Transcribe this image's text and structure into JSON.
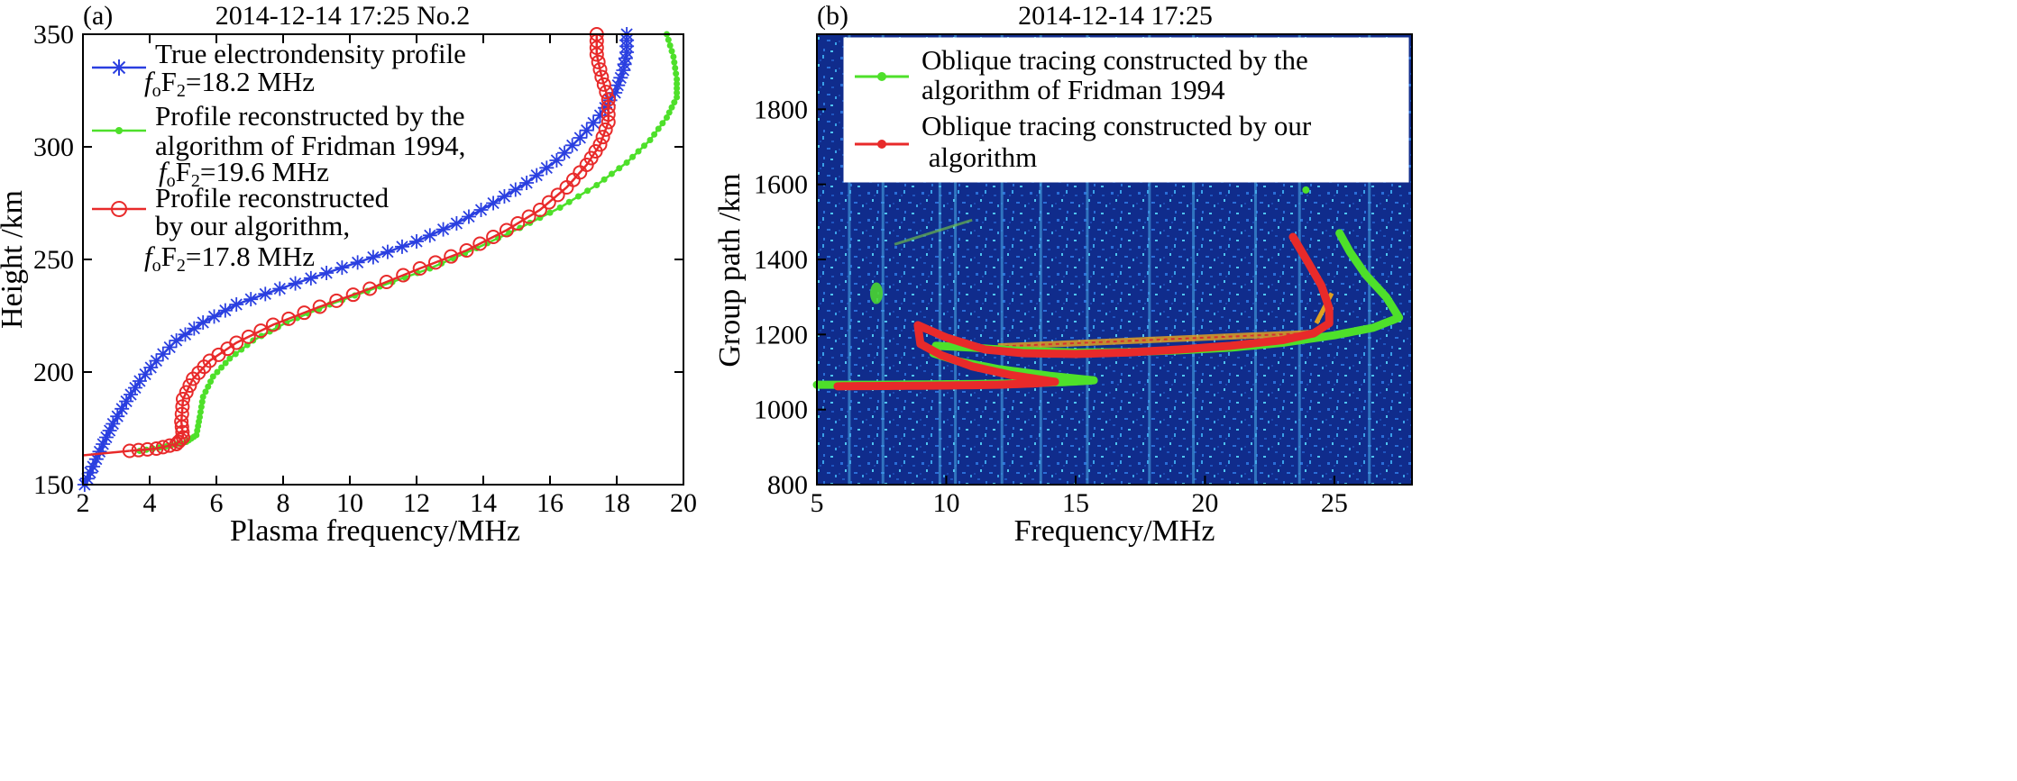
{
  "chart_data": [
    {
      "type": "line",
      "panel": "(a)",
      "title": "2014-12-14 17:25   No.2",
      "xlabel": "Plasma frequency/MHz",
      "ylabel": "Height /km",
      "xlim": [
        2,
        20
      ],
      "ylim": [
        150,
        350
      ],
      "xticks": [
        "2",
        "4",
        "6",
        "8",
        "10",
        "12",
        "14",
        "16",
        "18",
        "20"
      ],
      "yticks": [
        "150",
        "200",
        "250",
        "300",
        "350"
      ],
      "legend": {
        "placement": "top-left",
        "entries": [
          {
            "line1": "True electrondensity profile",
            "fof2": "=18.2 MHz"
          },
          {
            "line1": "Profile reconstructed by the",
            "line2": "algorithm of Fridman 1994,",
            "fof2": "=19.6 MHz"
          },
          {
            "line1": "Profile reconstructed",
            "line2": "by our algorithm,",
            "fof2": "=17.8 MHz"
          }
        ],
        "fo_symbol": "f",
        "fo_sub": "o",
        "F_symbol": "F",
        "F_sub": "2"
      },
      "series": [
        {
          "name": "True electrondensity profile",
          "color": "#2a3fe0",
          "marker": "star",
          "points": [
            [
              2.05,
              150
            ],
            [
              2.3,
              158
            ],
            [
              2.6,
              168
            ],
            [
              2.9,
              177
            ],
            [
              3.3,
              187
            ],
            [
              3.7,
              196
            ],
            [
              4.2,
              205
            ],
            [
              4.8,
              214
            ],
            [
              5.6,
              222
            ],
            [
              6.6,
              230
            ],
            [
              7.9,
              237
            ],
            [
              9.3,
              244
            ],
            [
              10.7,
              251
            ],
            [
              12.0,
              258
            ],
            [
              13.2,
              266
            ],
            [
              14.3,
              275
            ],
            [
              15.3,
              284
            ],
            [
              16.2,
              294
            ],
            [
              16.9,
              304
            ],
            [
              17.5,
              314
            ],
            [
              17.95,
              324
            ],
            [
              18.2,
              334
            ],
            [
              18.3,
              342
            ],
            [
              18.3,
              350
            ]
          ]
        },
        {
          "name": "Profile reconstructed by the algorithm of Fridman 1994",
          "color": "#4ee02a",
          "marker": "dot",
          "points": [
            [
              3.7,
              165
            ],
            [
              4.5,
              167
            ],
            [
              5.1,
              169
            ],
            [
              5.4,
              172
            ],
            [
              5.5,
              180
            ],
            [
              5.6,
              189
            ],
            [
              5.9,
              198
            ],
            [
              6.4,
              206
            ],
            [
              7.1,
              214
            ],
            [
              8.1,
              222
            ],
            [
              9.4,
              230
            ],
            [
              10.9,
              238
            ],
            [
              12.4,
              246
            ],
            [
              13.8,
              255
            ],
            [
              15.1,
              264
            ],
            [
              16.3,
              273
            ],
            [
              17.4,
              283
            ],
            [
              18.3,
              293
            ],
            [
              19.0,
              303
            ],
            [
              19.5,
              313
            ],
            [
              19.8,
              322
            ],
            [
              19.8,
              330
            ],
            [
              19.7,
              340
            ],
            [
              19.5,
              350
            ]
          ]
        },
        {
          "name": "Profile reconstructed by our algorithm",
          "color": "#e82a2a",
          "marker": "circle",
          "points": [
            [
              3.4,
              165
            ],
            [
              4.2,
              166
            ],
            [
              4.8,
              168
            ],
            [
              5.0,
              171
            ],
            [
              4.95,
              178
            ],
            [
              5.0,
              188
            ],
            [
              5.3,
              197
            ],
            [
              5.8,
              205
            ],
            [
              6.6,
              213
            ],
            [
              7.7,
              221
            ],
            [
              9.1,
              229
            ],
            [
              10.6,
              237
            ],
            [
              12.1,
              246
            ],
            [
              13.5,
              254
            ],
            [
              14.7,
              263
            ],
            [
              15.7,
              272
            ],
            [
              16.5,
              282
            ],
            [
              17.1,
              292
            ],
            [
              17.5,
              301
            ],
            [
              17.75,
              311
            ],
            [
              17.75,
              321
            ],
            [
              17.55,
              331
            ],
            [
              17.4,
              341
            ],
            [
              17.4,
              350
            ]
          ]
        },
        {
          "name": "Bottom extension",
          "color": "#e82a2a",
          "marker": "none",
          "points": [
            [
              2.0,
              163
            ],
            [
              3.4,
              165
            ]
          ]
        }
      ]
    },
    {
      "type": "heatmap",
      "panel": "(b)",
      "title": "2014-12-14 17:25",
      "xlabel": "Frequency/MHz",
      "ylabel": "Group path /km",
      "xlim": [
        5,
        28
      ],
      "ylim": [
        800,
        2000
      ],
      "xticks": [
        "5",
        "10",
        "15",
        "20",
        "25"
      ],
      "yticks": [
        "800",
        "1000",
        "1200",
        "1400",
        "1600",
        "1800"
      ],
      "background_color": "#0e2a8a",
      "legend": {
        "placement": "top-left",
        "entries": [
          {
            "line1": "Oblique tracing constructed by the",
            "line2": "algorithm of Fridman 1994"
          },
          {
            "line1": "Oblique tracing constructed by our",
            "line2": " algorithm"
          }
        ]
      },
      "series": [
        {
          "name": "Oblique tracing constructed by the algorithm of Fridman 1994",
          "color": "#4ee02a",
          "low_branch": [
            [
              5.0,
              1066
            ],
            [
              7,
              1066
            ],
            [
              9,
              1067
            ],
            [
              11,
              1068
            ],
            [
              13,
              1070
            ],
            [
              14.5,
              1073
            ],
            [
              15.3,
              1076
            ],
            [
              15.7,
              1078
            ]
          ],
          "high_branch": [
            [
              15.7,
              1078
            ],
            [
              14,
              1090
            ],
            [
              12,
              1108
            ],
            [
              10.5,
              1128
            ],
            [
              9.5,
              1150
            ],
            [
              9.6,
              1170
            ],
            [
              11,
              1165
            ],
            [
              13,
              1156
            ],
            [
              15,
              1152
            ],
            [
              17,
              1153
            ],
            [
              19,
              1158
            ],
            [
              21,
              1165
            ],
            [
              23,
              1178
            ],
            [
              25,
              1198
            ],
            [
              26.5,
              1218
            ],
            [
              27.5,
              1245
            ],
            [
              27,
              1300
            ],
            [
              26.2,
              1360
            ],
            [
              25.6,
              1420
            ],
            [
              25.2,
              1470
            ]
          ]
        },
        {
          "name": "Oblique tracing constructed by our algorithm",
          "color": "#e82a2a",
          "low_branch": [
            [
              5.8,
              1062
            ],
            [
              8,
              1063
            ],
            [
              10,
              1064
            ],
            [
              12,
              1066
            ],
            [
              13.5,
              1070
            ],
            [
              14.2,
              1074
            ]
          ],
          "high_branch": [
            [
              14.2,
              1074
            ],
            [
              12.5,
              1092
            ],
            [
              11,
              1115
            ],
            [
              9.8,
              1145
            ],
            [
              9.0,
              1175
            ],
            [
              8.9,
              1225
            ],
            [
              10,
              1192
            ],
            [
              11.5,
              1160
            ],
            [
              13,
              1150
            ],
            [
              15,
              1148
            ],
            [
              17,
              1152
            ],
            [
              19,
              1160
            ],
            [
              21,
              1170
            ],
            [
              23,
              1185
            ],
            [
              24.2,
              1203
            ],
            [
              24.8,
              1230
            ],
            [
              24.8,
              1270
            ],
            [
              24.5,
              1330
            ],
            [
              24,
              1390
            ],
            [
              23.4,
              1460
            ]
          ]
        }
      ]
    }
  ]
}
